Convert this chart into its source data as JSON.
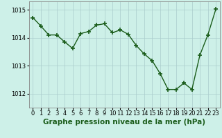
{
  "x": [
    0,
    1,
    2,
    3,
    4,
    5,
    6,
    7,
    8,
    9,
    10,
    11,
    12,
    13,
    14,
    15,
    16,
    17,
    18,
    19,
    20,
    21,
    22,
    23
  ],
  "y": [
    1014.72,
    1014.42,
    1014.1,
    1014.1,
    1013.85,
    1013.62,
    1014.15,
    1014.22,
    1014.45,
    1014.5,
    1014.18,
    1014.28,
    1014.12,
    1013.72,
    1013.42,
    1013.18,
    1012.72,
    1012.15,
    1012.15,
    1012.38,
    1012.15,
    1013.38,
    1014.1,
    1015.02
  ],
  "line_color": "#1a5c1a",
  "marker_color": "#1a5c1a",
  "bg_color": "#cdf0e8",
  "grid_color": "#aacccc",
  "xlabel": "Graphe pression niveau de la mer (hPa)",
  "ylim": [
    1011.5,
    1015.3
  ],
  "xlim": [
    -0.5,
    23.5
  ],
  "yticks": [
    1012,
    1013,
    1014,
    1015
  ],
  "xticks": [
    0,
    1,
    2,
    3,
    4,
    5,
    6,
    7,
    8,
    9,
    10,
    11,
    12,
    13,
    14,
    15,
    16,
    17,
    18,
    19,
    20,
    21,
    22,
    23
  ],
  "xlabel_fontsize": 7.5,
  "tick_fontsize": 6.0,
  "line_width": 1.0,
  "marker_size": 4
}
